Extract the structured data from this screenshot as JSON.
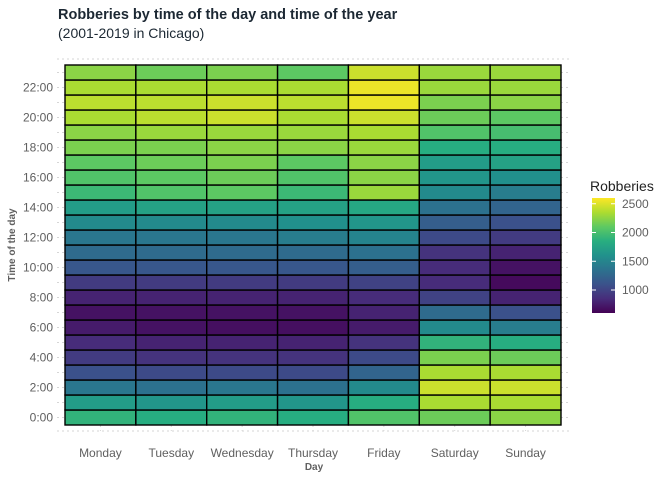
{
  "chart_data": {
    "type": "heatmap",
    "title": "Robberies by time of the day and time of the year",
    "subtitle": "(2001-2019 in Chicago)",
    "xlabel": "Day",
    "ylabel": "Time of the day",
    "x_categories": [
      "Monday",
      "Tuesday",
      "Wednesday",
      "Thursday",
      "Friday",
      "Saturday",
      "Sunday"
    ],
    "y_categories": [
      "0:00",
      "1:00",
      "2:00",
      "3:00",
      "4:00",
      "5:00",
      "6:00",
      "7:00",
      "8:00",
      "9:00",
      "10:00",
      "11:00",
      "12:00",
      "13:00",
      "14:00",
      "15:00",
      "16:00",
      "17:00",
      "18:00",
      "19:00",
      "20:00",
      "21:00",
      "22:00",
      "23:00"
    ],
    "y_tick_labels": [
      "0:00",
      "2:00",
      "4:00",
      "6:00",
      "8:00",
      "10:00",
      "12:00",
      "14:00",
      "16:00",
      "18:00",
      "20:00",
      "22:00"
    ],
    "values_by_day": {
      "Monday": [
        1900,
        1700,
        1400,
        1100,
        950,
        850,
        750,
        700,
        800,
        950,
        1150,
        1300,
        1400,
        1550,
        1700,
        1950,
        2050,
        2100,
        2200,
        2250,
        2350,
        2400,
        2350,
        2250
      ],
      "Tuesday": [
        1850,
        1650,
        1350,
        1050,
        900,
        800,
        700,
        700,
        800,
        950,
        1150,
        1300,
        1400,
        1550,
        1750,
        2050,
        2100,
        2150,
        2200,
        2300,
        2400,
        2400,
        2350,
        2150
      ],
      "Wednesday": [
        1900,
        1700,
        1400,
        1050,
        900,
        800,
        680,
        700,
        800,
        950,
        1150,
        1300,
        1400,
        1550,
        1750,
        2100,
        2150,
        2200,
        2250,
        2300,
        2450,
        2450,
        2350,
        2200
      ],
      "Thursday": [
        1850,
        1650,
        1350,
        1050,
        900,
        800,
        680,
        700,
        800,
        950,
        1150,
        1300,
        1450,
        1600,
        1750,
        1950,
        2050,
        2100,
        2250,
        2300,
        2350,
        2400,
        2350,
        2100
      ],
      "Friday": [
        2050,
        1850,
        1550,
        1250,
        1050,
        900,
        750,
        800,
        850,
        1000,
        1200,
        1350,
        1500,
        1650,
        1800,
        2300,
        2250,
        2250,
        2300,
        2350,
        2450,
        2550,
        2550,
        2450
      ],
      "Saturday": [
        2150,
        2350,
        2450,
        2350,
        2200,
        1900,
        1550,
        1300,
        1000,
        850,
        850,
        900,
        1050,
        1200,
        1350,
        1550,
        1650,
        1700,
        1850,
        2050,
        2150,
        2200,
        2300,
        2300
      ],
      "Sunday": [
        2250,
        2350,
        2450,
        2350,
        2150,
        1850,
        1450,
        1100,
        800,
        650,
        700,
        800,
        950,
        1100,
        1250,
        1450,
        1600,
        1750,
        1850,
        2000,
        2100,
        2250,
        2300,
        2300
      ]
    },
    "color_scale": {
      "name": "viridis",
      "min": 600,
      "max": 2600,
      "legend_title": "Robberies",
      "legend_ticks": [
        1000,
        1500,
        2000,
        2500
      ]
    },
    "grid": true,
    "legend_position": "right"
  }
}
